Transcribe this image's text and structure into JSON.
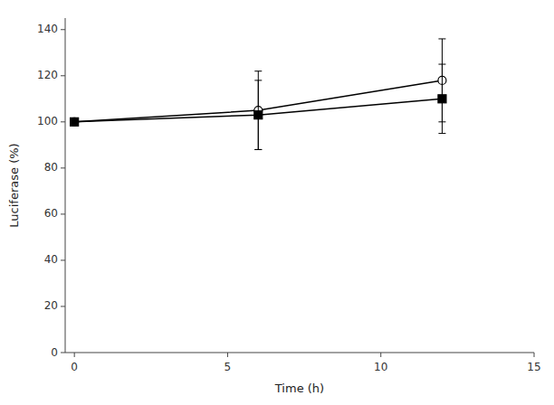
{
  "chart_data": {
    "type": "line",
    "xlabel": "Time (h)",
    "ylabel": "Luciferase (%)",
    "x": [
      0,
      6,
      12
    ],
    "xlim": [
      -0.3,
      15
    ],
    "ylim": [
      0,
      145
    ],
    "xticks": [
      0,
      5,
      10,
      15
    ],
    "yticks": [
      0,
      20,
      40,
      60,
      80,
      100,
      120,
      140
    ],
    "grid": false,
    "series": [
      {
        "color": "black",
        "marker": "open-circle",
        "values": [
          100,
          105,
          118
        ],
        "errors": [
          0,
          17,
          18
        ]
      },
      {
        "color": "black",
        "marker": "square",
        "values": [
          100,
          103,
          110
        ],
        "errors": [
          0,
          15,
          15
        ]
      }
    ]
  }
}
